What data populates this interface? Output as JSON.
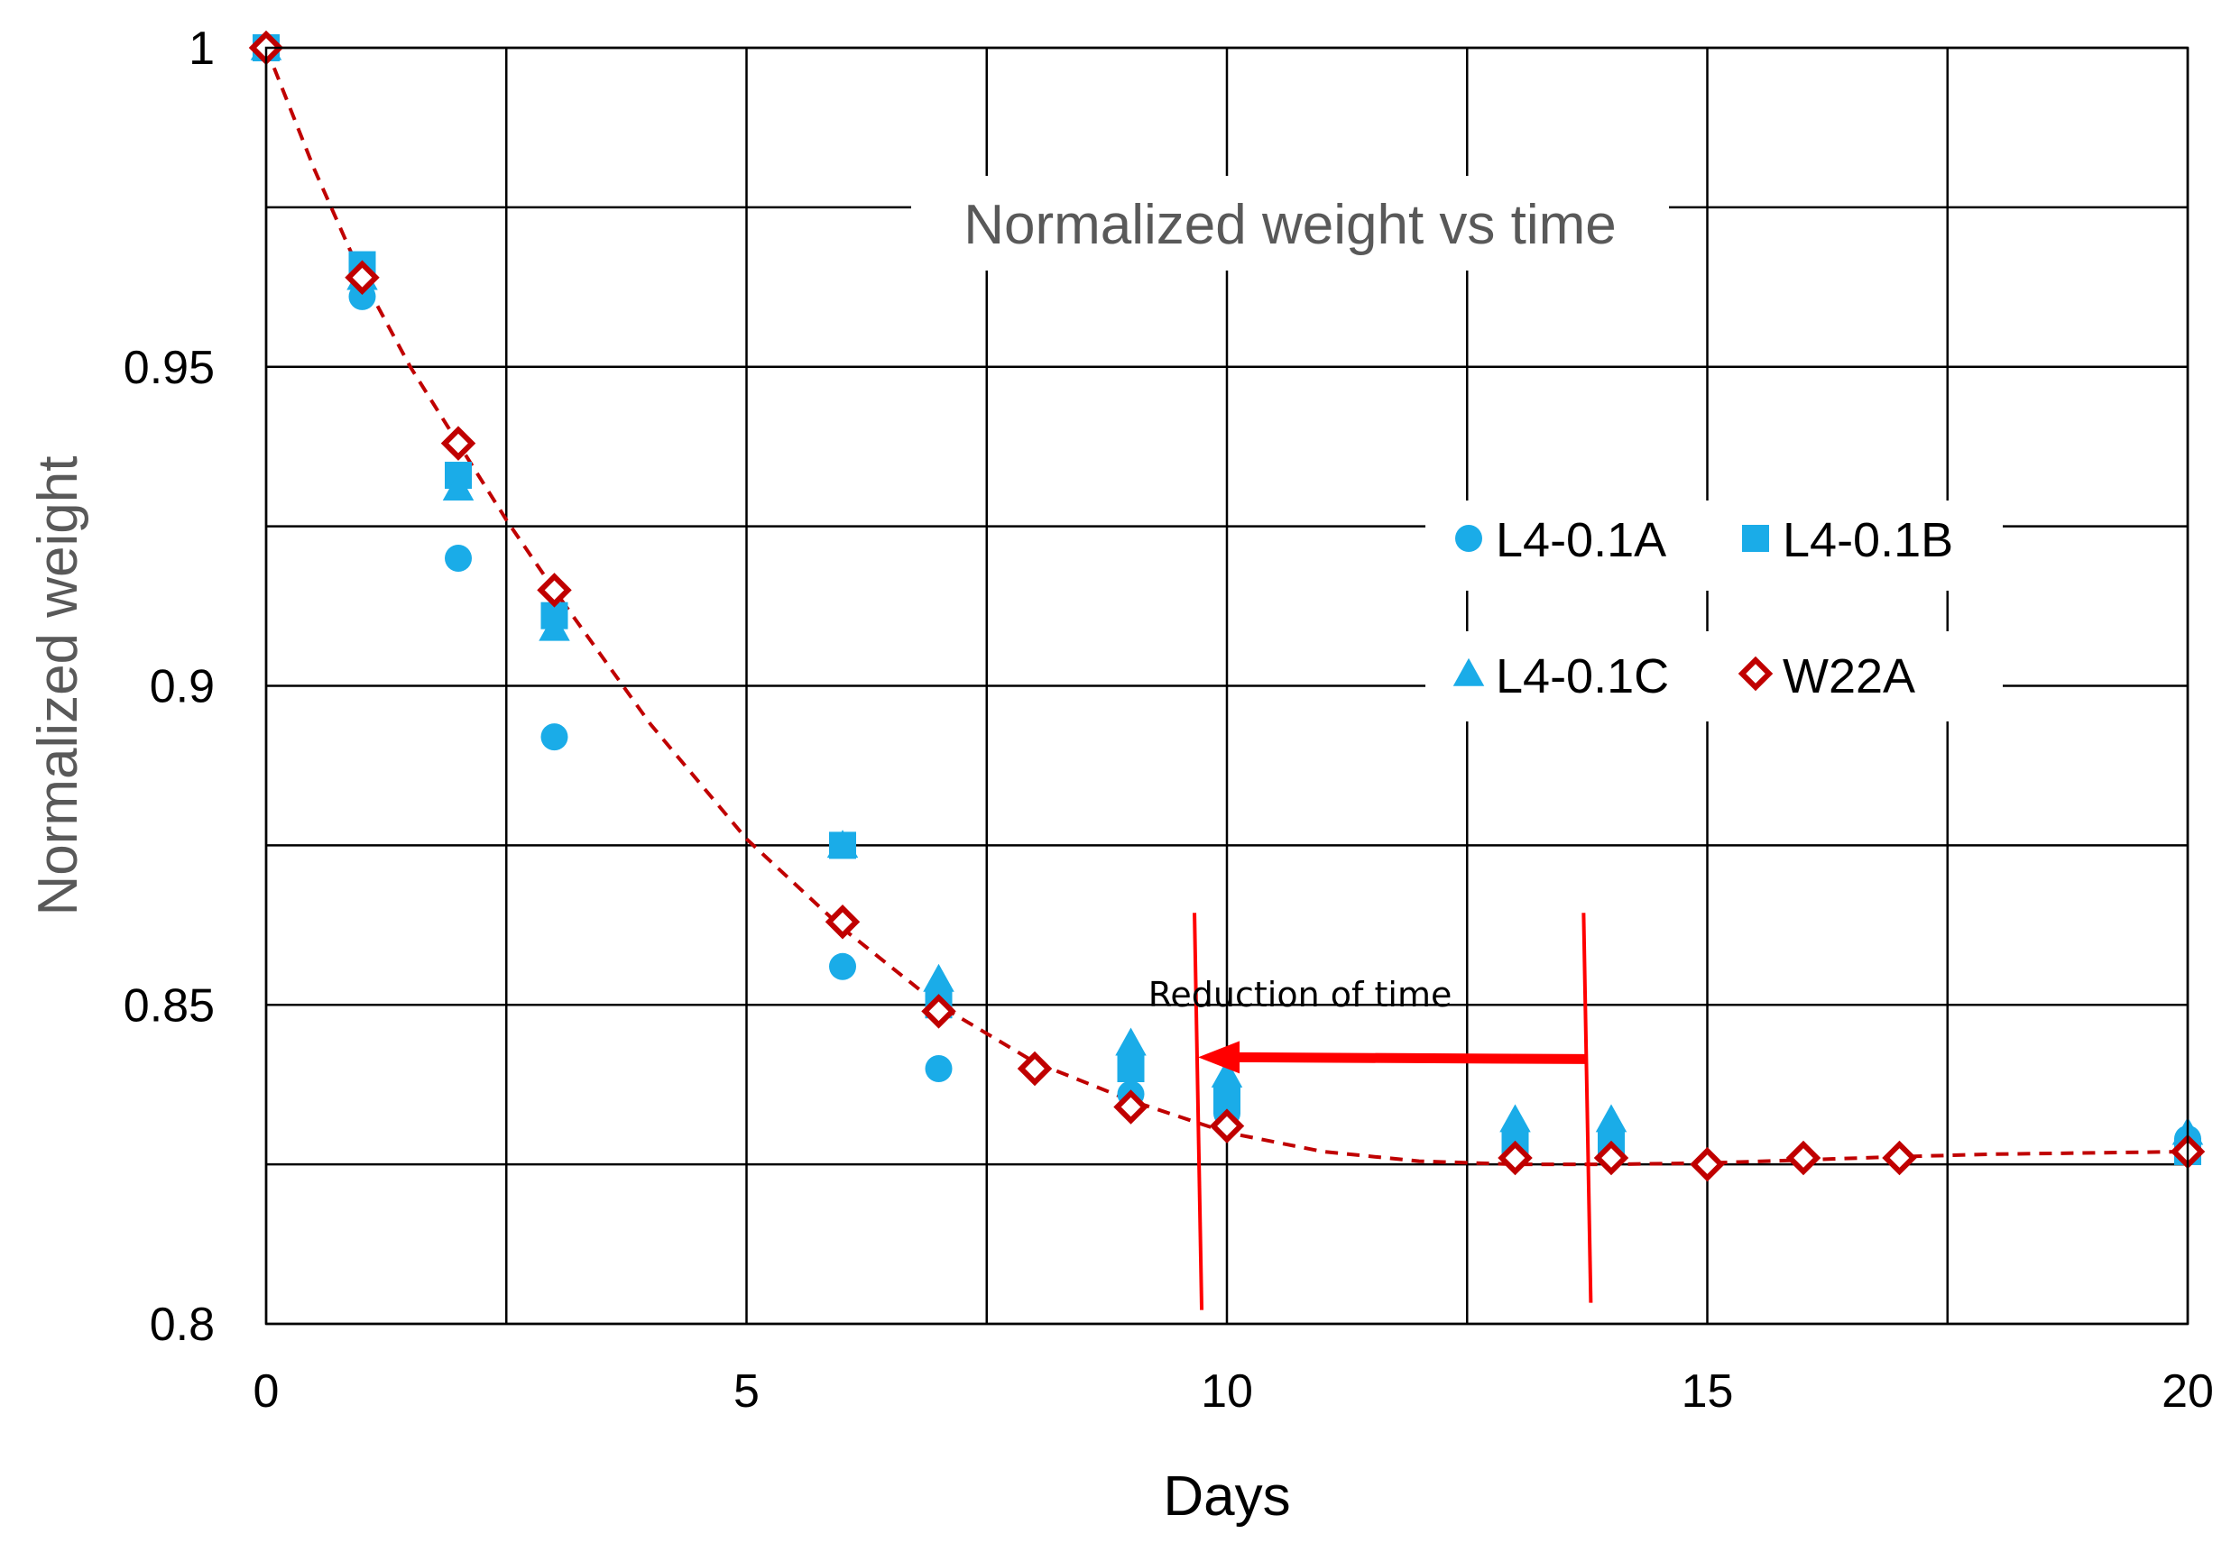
{
  "chart_data": {
    "type": "scatter",
    "title": "Normalized weight vs time",
    "xlabel": "Days",
    "ylabel": "Normalized weight",
    "xlim": [
      0,
      20
    ],
    "ylim": [
      0.8,
      1
    ],
    "xticks": [
      0,
      5,
      10,
      15,
      20
    ],
    "yticks": [
      0.8,
      0.85,
      0.9,
      0.95,
      1
    ],
    "xtick_labels": [
      "0",
      "5",
      "10",
      "15",
      "20"
    ],
    "ytick_labels": [
      "0.8",
      "0.85",
      "0.9",
      "0.95",
      "1"
    ],
    "grid": true,
    "legend_position": "center-right",
    "series": [
      {
        "name": "L4-0.1A",
        "marker": "circle",
        "color": "#1aace8",
        "x": [
          0,
          1,
          2,
          3,
          6,
          7,
          9,
          10,
          13,
          14,
          20
        ],
        "y": [
          1.0,
          0.961,
          0.92,
          0.892,
          0.856,
          0.84,
          0.836,
          0.833,
          0.827,
          0.827,
          0.829
        ]
      },
      {
        "name": "L4-0.1B",
        "marker": "square",
        "color": "#1aace8",
        "x": [
          0,
          1,
          2,
          3,
          6,
          7,
          9,
          10,
          13,
          14,
          20
        ],
        "y": [
          1.0,
          0.966,
          0.933,
          0.911,
          0.875,
          0.85,
          0.84,
          0.835,
          0.828,
          0.828,
          0.827
        ]
      },
      {
        "name": "L4-0.1C",
        "marker": "triangle",
        "color": "#1aace8",
        "x": [
          0,
          1,
          2,
          3,
          6,
          7,
          9,
          10,
          13,
          14,
          20
        ],
        "y": [
          1.0,
          0.964,
          0.931,
          0.909,
          0.875,
          0.854,
          0.844,
          0.839,
          0.832,
          0.832,
          0.83
        ]
      },
      {
        "name": "W22A",
        "marker": "diamond-open",
        "color": "#c00000",
        "x": [
          0,
          1,
          2,
          3,
          6,
          7,
          8,
          9,
          10,
          13,
          14,
          15,
          16,
          17,
          20
        ],
        "y": [
          1.0,
          0.964,
          0.938,
          0.915,
          0.863,
          0.849,
          0.84,
          0.834,
          0.831,
          0.826,
          0.826,
          0.825,
          0.826,
          0.826,
          0.827
        ]
      }
    ],
    "trendline": {
      "series": "W22A",
      "style": "dashed",
      "color": "#c00000",
      "x": [
        0,
        0.5,
        1,
        1.5,
        2,
        2.5,
        3,
        4,
        5,
        6,
        7,
        8,
        9,
        10,
        11,
        12,
        13,
        14,
        15,
        16,
        17,
        18,
        19,
        20
      ],
      "y": [
        1.0,
        0.981,
        0.964,
        0.95,
        0.938,
        0.926,
        0.915,
        0.894,
        0.876,
        0.862,
        0.85,
        0.841,
        0.835,
        0.83,
        0.827,
        0.8255,
        0.825,
        0.825,
        0.8252,
        0.8257,
        0.8262,
        0.8266,
        0.8268,
        0.827
      ]
    },
    "annotations": [
      {
        "text": "Reduction of time",
        "color": "#ff0000",
        "vline_start_x": 9.7,
        "vline_end_x": 13.75,
        "vline_y_range": [
          0.805,
          0.863
        ],
        "arrow_from": [
          13.75,
          0.8415
        ],
        "arrow_to": [
          9.7,
          0.8415
        ],
        "label_anchor": [
          11.7,
          0.854
        ]
      }
    ]
  }
}
